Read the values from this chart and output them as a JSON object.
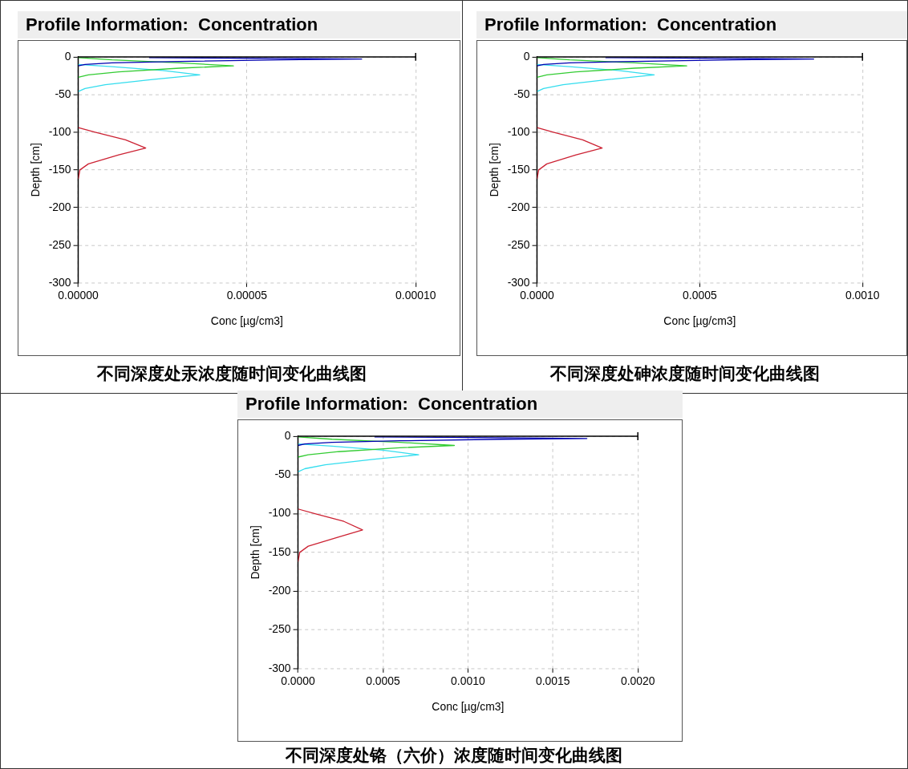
{
  "chart_data": [
    {
      "type": "line",
      "title": "Profile Information:  Concentration",
      "xlabel": "Conc [µg/cm3]",
      "ylabel": "Depth [cm]",
      "annotations": [
        "不同深度处汞浓度随时间变化曲线图"
      ],
      "xlim": [
        0,
        0.0001
      ],
      "xticks": [
        {
          "value": 0,
          "label": "0.00000"
        },
        {
          "value": 5e-05,
          "label": "0.00005"
        },
        {
          "value": 0.0001,
          "label": "0.00010"
        }
      ],
      "ylim": [
        -300,
        0
      ],
      "yticks": [
        0,
        -50,
        -100,
        -150,
        -200,
        -250,
        -300
      ],
      "grid": true,
      "legend": false,
      "marker": "none",
      "line_style": "solid",
      "series": [
        {
          "color": "#0000b0",
          "x": [
            2.1e-05,
            6e-05,
            8.4e-05,
            6e-05,
            3e-05,
            1e-05,
            2e-06,
            0
          ],
          "values": [
            -1,
            -2,
            -3,
            -4,
            -6,
            -8,
            -10,
            -12
          ]
        },
        {
          "color": "#33cc33",
          "x": [
            0,
            1e-05,
            3e-05,
            4.6e-05,
            3e-05,
            1.2e-05,
            3e-06,
            0
          ],
          "values": [
            -1,
            -4,
            -8,
            -12,
            -15,
            -20,
            -24,
            -27
          ]
        },
        {
          "color": "#33ddee",
          "x": [
            0,
            1e-05,
            2.5e-05,
            3.6e-05,
            2.2e-05,
            8e-06,
            2e-06,
            0
          ],
          "values": [
            -10,
            -13,
            -18,
            -24,
            -30,
            -37,
            -42,
            -46
          ]
        },
        {
          "color": "#cc2233",
          "x": [
            0,
            5e-06,
            1.4e-05,
            2e-05,
            1.2e-05,
            3e-06,
            5e-07,
            0
          ],
          "values": [
            -94,
            -100,
            -110,
            -121,
            -130,
            -142,
            -150,
            -162
          ]
        }
      ]
    },
    {
      "type": "line",
      "title": "Profile Information:  Concentration",
      "xlabel": "Conc [µg/cm3]",
      "ylabel": "Depth [cm]",
      "annotations": [
        "不同深度处砷浓度随时间变化曲线图"
      ],
      "xlim": [
        0,
        0.001
      ],
      "xticks": [
        {
          "value": 0,
          "label": "0.0000"
        },
        {
          "value": 0.0005,
          "label": "0.0005"
        },
        {
          "value": 0.001,
          "label": "0.0010"
        }
      ],
      "ylim": [
        -300,
        0
      ],
      "yticks": [
        0,
        -50,
        -100,
        -150,
        -200,
        -250,
        -300
      ],
      "grid": true,
      "legend": false,
      "marker": "none",
      "line_style": "solid",
      "series": [
        {
          "color": "#0000b0",
          "x": [
            0.00021,
            0.0006,
            0.00085,
            0.0006,
            0.0003,
            0.0001,
            2e-05,
            0
          ],
          "values": [
            -1,
            -2,
            -3,
            -4,
            -6,
            -8,
            -10,
            -12
          ]
        },
        {
          "color": "#33cc33",
          "x": [
            0,
            0.0001,
            0.0003,
            0.00046,
            0.0003,
            0.00012,
            3e-05,
            0
          ],
          "values": [
            -1,
            -4,
            -8,
            -12,
            -15,
            -20,
            -24,
            -27
          ]
        },
        {
          "color": "#33ddee",
          "x": [
            0,
            0.0001,
            0.00025,
            0.00036,
            0.00022,
            8e-05,
            2e-05,
            0
          ],
          "values": [
            -10,
            -13,
            -18,
            -24,
            -30,
            -37,
            -42,
            -46
          ]
        },
        {
          "color": "#cc2233",
          "x": [
            0,
            5e-05,
            0.00014,
            0.0002,
            0.00012,
            3e-05,
            5e-06,
            0
          ],
          "values": [
            -94,
            -100,
            -110,
            -121,
            -130,
            -142,
            -150,
            -162
          ]
        }
      ]
    },
    {
      "type": "line",
      "title": "Profile Information:  Concentration",
      "xlabel": "Conc [µg/cm3]",
      "ylabel": "Depth [cm]",
      "annotations": [
        "不同深度处铬（六价）浓度随时间变化曲线图"
      ],
      "xlim": [
        0,
        0.002
      ],
      "xticks": [
        {
          "value": 0,
          "label": "0.0000"
        },
        {
          "value": 0.0005,
          "label": "0.0005"
        },
        {
          "value": 0.001,
          "label": "0.0010"
        },
        {
          "value": 0.0015,
          "label": "0.0015"
        },
        {
          "value": 0.002,
          "label": "0.0020"
        }
      ],
      "ylim": [
        -300,
        0
      ],
      "yticks": [
        0,
        -50,
        -100,
        -150,
        -200,
        -250,
        -300
      ],
      "grid": true,
      "legend": false,
      "marker": "none",
      "line_style": "solid",
      "series": [
        {
          "color": "#0000b0",
          "x": [
            0.00045,
            0.0012,
            0.0017,
            0.0012,
            0.0006,
            0.0002,
            4e-05,
            0
          ],
          "values": [
            -1,
            -2,
            -3,
            -4,
            -6,
            -8,
            -10,
            -12
          ]
        },
        {
          "color": "#33cc33",
          "x": [
            0,
            0.0002,
            0.0006,
            0.00092,
            0.0006,
            0.00024,
            6e-05,
            0
          ],
          "values": [
            -1,
            -4,
            -8,
            -12,
            -15,
            -20,
            -24,
            -27
          ]
        },
        {
          "color": "#33ddee",
          "x": [
            0,
            0.0002,
            0.0005,
            0.00071,
            0.00044,
            0.00016,
            4e-05,
            0
          ],
          "values": [
            -10,
            -13,
            -18,
            -24,
            -30,
            -37,
            -42,
            -46
          ]
        },
        {
          "color": "#cc2233",
          "x": [
            0,
            0.0001,
            0.00027,
            0.00038,
            0.00024,
            6e-05,
            1e-05,
            0
          ],
          "values": [
            -94,
            -100,
            -110,
            -121,
            -130,
            -142,
            -150,
            -162
          ]
        }
      ]
    }
  ]
}
